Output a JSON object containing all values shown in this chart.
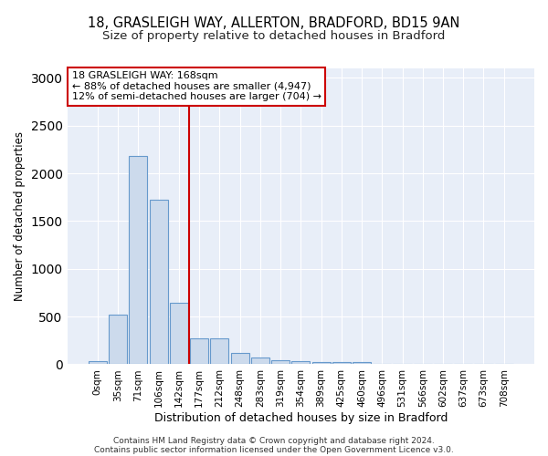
{
  "title1": "18, GRASLEIGH WAY, ALLERTON, BRADFORD, BD15 9AN",
  "title2": "Size of property relative to detached houses in Bradford",
  "xlabel": "Distribution of detached houses by size in Bradford",
  "ylabel": "Number of detached properties",
  "bar_color": "#ccdaec",
  "bar_edge_color": "#6699cc",
  "categories": [
    "0sqm",
    "35sqm",
    "71sqm",
    "106sqm",
    "142sqm",
    "177sqm",
    "212sqm",
    "248sqm",
    "283sqm",
    "319sqm",
    "354sqm",
    "389sqm",
    "425sqm",
    "460sqm",
    "496sqm",
    "531sqm",
    "566sqm",
    "602sqm",
    "637sqm",
    "673sqm",
    "708sqm"
  ],
  "values": [
    30,
    525,
    2180,
    1720,
    640,
    270,
    270,
    120,
    70,
    40,
    30,
    25,
    25,
    22,
    5,
    2,
    2,
    2,
    2,
    2,
    2
  ],
  "ylim": [
    0,
    3100
  ],
  "yticks": [
    0,
    500,
    1000,
    1500,
    2000,
    2500,
    3000
  ],
  "red_line_x": 4.5,
  "annotation_line1": "18 GRASLEIGH WAY: 168sqm",
  "annotation_line2": "← 88% of detached houses are smaller (4,947)",
  "annotation_line3": "12% of semi-detached houses are larger (704) →",
  "annotation_box_color": "#ffffff",
  "annotation_box_edge": "#cc0000",
  "footer1": "Contains HM Land Registry data © Crown copyright and database right 2024.",
  "footer2": "Contains public sector information licensed under the Open Government Licence v3.0.",
  "background_color": "#e8eef8",
  "grid_color": "#ffffff",
  "fig_bg": "#ffffff",
  "red_line_color": "#cc0000",
  "title1_fontsize": 10.5,
  "title2_fontsize": 9.5
}
